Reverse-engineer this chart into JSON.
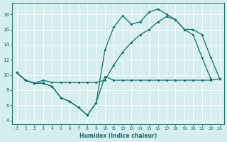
{
  "xlabel": "Humidex (Indice chaleur)",
  "background_color": "#d6eef0",
  "grid_color": "#ffffff",
  "line_color": "#1a6b6b",
  "xlim": [
    -0.5,
    23.5
  ],
  "ylim": [
    3.5,
    19.5
  ],
  "yticks": [
    4,
    6,
    8,
    10,
    12,
    14,
    16,
    18
  ],
  "xticks": [
    0,
    1,
    2,
    3,
    4,
    5,
    6,
    7,
    8,
    9,
    10,
    11,
    12,
    13,
    14,
    15,
    16,
    17,
    18,
    19,
    20,
    21,
    22,
    23
  ],
  "line1_x": [
    0,
    1,
    2,
    3,
    4,
    5,
    6,
    7,
    8,
    9,
    10,
    11,
    12,
    13,
    14,
    15,
    16,
    17,
    18,
    19,
    20,
    21,
    22,
    23
  ],
  "line1_y": [
    10.3,
    9.3,
    8.9,
    8.9,
    8.5,
    7.0,
    6.5,
    5.7,
    4.7,
    6.3,
    9.8,
    9.3,
    9.3,
    9.3,
    9.3,
    9.3,
    9.3,
    9.3,
    9.3,
    9.3,
    9.3,
    9.3,
    9.3,
    9.5
  ],
  "line2_x": [
    0,
    1,
    2,
    3,
    4,
    5,
    6,
    7,
    8,
    9,
    10,
    11,
    12,
    13,
    14,
    15,
    16,
    17,
    18,
    19,
    20,
    21,
    22
  ],
  "line2_y": [
    10.3,
    9.3,
    8.9,
    8.9,
    8.5,
    7.0,
    6.5,
    5.7,
    4.7,
    6.3,
    13.3,
    16.3,
    17.8,
    16.7,
    17.0,
    18.3,
    18.7,
    18.0,
    17.3,
    16.0,
    15.3,
    12.3,
    9.5
  ],
  "line3_x": [
    0,
    1,
    2,
    3,
    4,
    5,
    6,
    7,
    8,
    9,
    10,
    11,
    12,
    13,
    14,
    15,
    16,
    17,
    18,
    19,
    20,
    21,
    22,
    23
  ],
  "line3_y": [
    10.3,
    9.3,
    8.9,
    9.3,
    9.0,
    9.0,
    9.0,
    9.0,
    9.0,
    9.0,
    9.3,
    11.3,
    13.0,
    14.3,
    15.3,
    16.0,
    17.0,
    17.7,
    17.3,
    16.0,
    16.0,
    15.3,
    12.3,
    9.5
  ]
}
